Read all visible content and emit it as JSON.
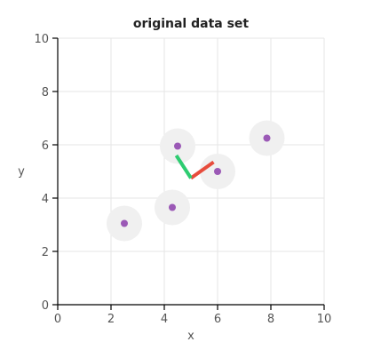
{
  "chart_data": {
    "type": "scatter",
    "title": "original data set",
    "xlabel": "x",
    "ylabel": "y",
    "xlim": [
      0,
      10
    ],
    "ylim": [
      0,
      10
    ],
    "xticks": [
      "0",
      "2",
      "4",
      "6",
      "8",
      "10"
    ],
    "yticks": [
      "0",
      "2",
      "4",
      "6",
      "8",
      "10"
    ],
    "grid": true,
    "points": [
      {
        "x": 2.5,
        "y": 3.05
      },
      {
        "x": 4.3,
        "y": 3.65
      },
      {
        "x": 4.5,
        "y": 5.95
      },
      {
        "x": 6.0,
        "y": 5.0
      },
      {
        "x": 7.85,
        "y": 6.25
      }
    ],
    "point_color": "#9b59b6",
    "halo_color": "#f0f0f0",
    "component_vectors": [
      {
        "from": [
          5.0,
          4.75
        ],
        "to": [
          5.85,
          5.35
        ],
        "color": "#e74c3c"
      },
      {
        "from": [
          5.0,
          4.75
        ],
        "to": [
          4.45,
          5.6
        ],
        "color": "#2ecc71"
      }
    ]
  }
}
